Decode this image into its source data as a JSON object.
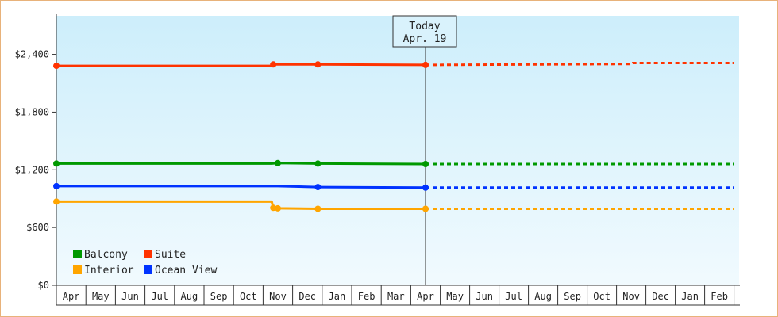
{
  "chart_data": {
    "type": "line",
    "title": "",
    "xlabel": "",
    "ylabel": "",
    "ylim": [
      0,
      2800
    ],
    "yticks": [
      0,
      600,
      1200,
      1800,
      2400
    ],
    "ytick_labels": [
      "$0",
      "$600",
      "$1,200",
      "$1,800",
      "$2,400"
    ],
    "x_months": [
      "Apr",
      "May",
      "Jun",
      "Jul",
      "Aug",
      "Sep",
      "Oct",
      "Nov",
      "Dec",
      "Jan",
      "Feb",
      "Mar",
      "Apr",
      "May",
      "Jun",
      "Jul",
      "Aug",
      "Sep",
      "Oct",
      "Nov",
      "Dec",
      "Jan",
      "Feb"
    ],
    "grid": false,
    "legend_position": "bottom-left",
    "today": {
      "line1": "Today",
      "line2": "Apr. 19",
      "x": 12.0
    },
    "series": [
      {
        "name": "Suite",
        "color": "#ff3300",
        "actual": [
          [
            0.0,
            2280
          ],
          [
            7.0,
            2280
          ],
          [
            7.05,
            2295
          ],
          [
            8.5,
            2295
          ],
          [
            12.0,
            2290
          ]
        ],
        "forecast": [
          [
            12.0,
            2290
          ],
          [
            19.0,
            2300
          ],
          [
            19.05,
            2310
          ],
          [
            22.5,
            2310
          ]
        ]
      },
      {
        "name": "Balcony",
        "color": "#009900",
        "actual": [
          [
            0.0,
            1265
          ],
          [
            7.0,
            1265
          ],
          [
            7.2,
            1270
          ],
          [
            8.5,
            1265
          ],
          [
            12.0,
            1260
          ]
        ],
        "forecast": [
          [
            12.0,
            1260
          ],
          [
            22.5,
            1260
          ]
        ]
      },
      {
        "name": "Ocean View",
        "color": "#0033ff",
        "actual": [
          [
            0.0,
            1030
          ],
          [
            7.2,
            1030
          ],
          [
            8.5,
            1020
          ],
          [
            12.0,
            1015
          ]
        ],
        "forecast": [
          [
            12.0,
            1015
          ],
          [
            22.5,
            1015
          ]
        ]
      },
      {
        "name": "Interior",
        "color": "#ffa500",
        "actual": [
          [
            0.0,
            870
          ],
          [
            7.0,
            870
          ],
          [
            7.05,
            805
          ],
          [
            7.2,
            800
          ],
          [
            8.5,
            795
          ],
          [
            12.0,
            795
          ]
        ],
        "forecast": [
          [
            12.0,
            795
          ],
          [
            22.5,
            795
          ]
        ]
      }
    ],
    "legend": [
      {
        "name": "Balcony",
        "color": "#009900"
      },
      {
        "name": "Suite",
        "color": "#ff3300"
      },
      {
        "name": "Interior",
        "color": "#ffa500"
      },
      {
        "name": "Ocean View",
        "color": "#0033ff"
      }
    ],
    "colors": {
      "bg_top": "#cdeefb",
      "bg_bottom": "#f1fafe",
      "frame_border": "#e8b27a",
      "axis": "#333333"
    }
  }
}
